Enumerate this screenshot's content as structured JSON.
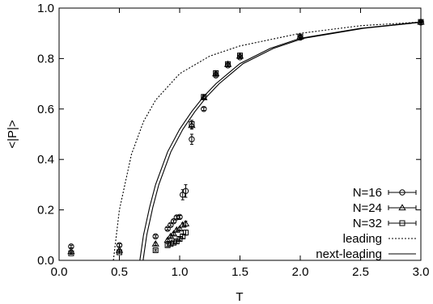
{
  "chart_data": {
    "type": "scatter",
    "title": "",
    "xlabel": "T",
    "ylabel": "<|P|>",
    "xlim": [
      0.0,
      3.0
    ],
    "ylim": [
      0.0,
      1.0
    ],
    "xticks": [
      "0.0",
      "0.5",
      "1.0",
      "1.5",
      "2.0",
      "2.5",
      "3.0"
    ],
    "yticks": [
      "0.0",
      "0.2",
      "0.4",
      "0.6",
      "0.8",
      "1.0"
    ],
    "grid": false,
    "legend_position": "bottom-right",
    "series": [
      {
        "name": "N=16",
        "marker": "circle",
        "points": [
          {
            "x": 0.1,
            "y": 0.055,
            "err": 0.005
          },
          {
            "x": 0.5,
            "y": 0.06,
            "err": 0.005
          },
          {
            "x": 0.8,
            "y": 0.095,
            "err": 0.005
          },
          {
            "x": 0.9,
            "y": 0.125,
            "err": 0.005
          },
          {
            "x": 0.925,
            "y": 0.14,
            "err": 0.005
          },
          {
            "x": 0.95,
            "y": 0.155,
            "err": 0.005
          },
          {
            "x": 0.975,
            "y": 0.17,
            "err": 0.006
          },
          {
            "x": 1.0,
            "y": 0.172,
            "err": 0.006
          },
          {
            "x": 1.025,
            "y": 0.26,
            "err": 0.02
          },
          {
            "x": 1.05,
            "y": 0.275,
            "err": 0.025
          },
          {
            "x": 1.1,
            "y": 0.48,
            "err": 0.02
          },
          {
            "x": 1.2,
            "y": 0.6,
            "err": 0.006
          },
          {
            "x": 1.3,
            "y": 0.733,
            "err": 0.005
          },
          {
            "x": 1.4,
            "y": 0.773,
            "err": 0.005
          },
          {
            "x": 1.5,
            "y": 0.805,
            "err": 0.005
          },
          {
            "x": 2.0,
            "y": 0.883,
            "err": 0.004
          },
          {
            "x": 3.0,
            "y": 0.943,
            "err": 0.003
          }
        ]
      },
      {
        "name": "N=24",
        "marker": "triangle",
        "points": [
          {
            "x": 0.1,
            "y": 0.035,
            "err": 0.004
          },
          {
            "x": 0.5,
            "y": 0.04,
            "err": 0.004
          },
          {
            "x": 0.8,
            "y": 0.065,
            "err": 0.005
          },
          {
            "x": 0.9,
            "y": 0.08,
            "err": 0.005
          },
          {
            "x": 0.925,
            "y": 0.095,
            "err": 0.005
          },
          {
            "x": 0.95,
            "y": 0.105,
            "err": 0.005
          },
          {
            "x": 0.975,
            "y": 0.12,
            "err": 0.005
          },
          {
            "x": 1.0,
            "y": 0.125,
            "err": 0.006
          },
          {
            "x": 1.025,
            "y": 0.14,
            "err": 0.008
          },
          {
            "x": 1.05,
            "y": 0.145,
            "err": 0.01
          },
          {
            "x": 1.1,
            "y": 0.535,
            "err": 0.015
          },
          {
            "x": 1.2,
            "y": 0.645,
            "err": 0.006
          },
          {
            "x": 1.3,
            "y": 0.74,
            "err": 0.005
          },
          {
            "x": 1.4,
            "y": 0.777,
            "err": 0.005
          },
          {
            "x": 1.5,
            "y": 0.81,
            "err": 0.005
          },
          {
            "x": 2.0,
            "y": 0.886,
            "err": 0.004
          },
          {
            "x": 3.0,
            "y": 0.945,
            "err": 0.003
          }
        ]
      },
      {
        "name": "N=32",
        "marker": "square",
        "points": [
          {
            "x": 0.1,
            "y": 0.028,
            "err": 0.004
          },
          {
            "x": 0.5,
            "y": 0.032,
            "err": 0.004
          },
          {
            "x": 0.8,
            "y": 0.04,
            "err": 0.004
          },
          {
            "x": 0.9,
            "y": 0.06,
            "err": 0.005
          },
          {
            "x": 0.925,
            "y": 0.065,
            "err": 0.005
          },
          {
            "x": 0.95,
            "y": 0.07,
            "err": 0.005
          },
          {
            "x": 0.975,
            "y": 0.075,
            "err": 0.005
          },
          {
            "x": 1.0,
            "y": 0.085,
            "err": 0.006
          },
          {
            "x": 1.025,
            "y": 0.095,
            "err": 0.008
          },
          {
            "x": 1.05,
            "y": 0.11,
            "err": 0.01
          },
          {
            "x": 1.1,
            "y": 0.54,
            "err": 0.015
          },
          {
            "x": 1.2,
            "y": 0.648,
            "err": 0.006
          },
          {
            "x": 1.3,
            "y": 0.742,
            "err": 0.005
          },
          {
            "x": 1.4,
            "y": 0.778,
            "err": 0.005
          },
          {
            "x": 1.5,
            "y": 0.812,
            "err": 0.005
          },
          {
            "x": 2.0,
            "y": 0.887,
            "err": 0.004
          },
          {
            "x": 3.0,
            "y": 0.945,
            "err": 0.003
          }
        ]
      }
    ],
    "curves": [
      {
        "name": "leading",
        "style": "dotted",
        "points": [
          {
            "x": 0.45,
            "y": 0.0
          },
          {
            "x": 0.5,
            "y": 0.2
          },
          {
            "x": 0.6,
            "y": 0.42
          },
          {
            "x": 0.7,
            "y": 0.55
          },
          {
            "x": 0.8,
            "y": 0.635
          },
          {
            "x": 1.0,
            "y": 0.74
          },
          {
            "x": 1.25,
            "y": 0.81
          },
          {
            "x": 1.5,
            "y": 0.85
          },
          {
            "x": 2.0,
            "y": 0.9
          },
          {
            "x": 2.5,
            "y": 0.93
          },
          {
            "x": 3.0,
            "y": 0.945
          }
        ]
      },
      {
        "name": "next-leading",
        "style": "double-solid",
        "points": [
          {
            "x": 0.67,
            "y": 0.0
          },
          {
            "x": 0.7,
            "y": 0.1
          },
          {
            "x": 0.75,
            "y": 0.21
          },
          {
            "x": 0.8,
            "y": 0.3
          },
          {
            "x": 0.9,
            "y": 0.43
          },
          {
            "x": 1.0,
            "y": 0.52
          },
          {
            "x": 1.1,
            "y": 0.59
          },
          {
            "x": 1.2,
            "y": 0.65
          },
          {
            "x": 1.3,
            "y": 0.7
          },
          {
            "x": 1.4,
            "y": 0.74
          },
          {
            "x": 1.5,
            "y": 0.78
          },
          {
            "x": 1.75,
            "y": 0.84
          },
          {
            "x": 2.0,
            "y": 0.88
          },
          {
            "x": 2.5,
            "y": 0.92
          },
          {
            "x": 3.0,
            "y": 0.945
          }
        ]
      }
    ]
  }
}
